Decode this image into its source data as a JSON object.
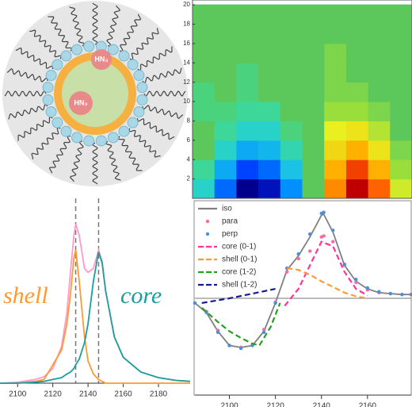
{
  "diagram": {
    "labels": [
      "HN₃",
      "HN₃"
    ]
  },
  "chart_data": [
    {
      "type": "contour",
      "categories": [
        null,
        null,
        null,
        null,
        null,
        null,
        null,
        null,
        null,
        null
      ],
      "y": [
        1,
        3,
        5,
        7,
        9,
        11,
        13,
        15,
        17,
        19
      ],
      "z": [
        [
          -0.2,
          -0.6,
          -1,
          -0.9,
          -0.5,
          0,
          0.6,
          1,
          0.7,
          0.2
        ],
        [
          -0.1,
          -0.4,
          -0.7,
          -0.6,
          -0.3,
          0,
          0.5,
          0.8,
          0.5,
          0.1
        ],
        [
          0,
          -0.2,
          -0.4,
          -0.35,
          -0.15,
          0,
          0.35,
          0.5,
          0.3,
          0.05
        ],
        [
          0,
          -0.1,
          -0.2,
          -0.2,
          -0.05,
          0,
          0.25,
          0.3,
          0.15,
          0
        ],
        [
          -0.05,
          -0.05,
          -0.1,
          -0.1,
          0,
          0,
          0.1,
          0.1,
          0.05,
          0
        ],
        [
          -0.05,
          0,
          -0.05,
          0,
          0,
          0,
          0.05,
          0.05,
          0,
          0
        ],
        [
          0,
          0,
          -0.05,
          0,
          0,
          0,
          0.05,
          0,
          0,
          0
        ],
        [
          0,
          0,
          0,
          0,
          0,
          0,
          0.05,
          0,
          0,
          0
        ],
        [
          0,
          0,
          0,
          0,
          0,
          0,
          0,
          0,
          0,
          0
        ],
        [
          0,
          0,
          0,
          0,
          0,
          0,
          0,
          0,
          0,
          0
        ]
      ],
      "colorscale": [
        [
          -1,
          "#00008c"
        ],
        [
          -0.75,
          "#0030ff"
        ],
        [
          -0.5,
          "#0090ff"
        ],
        [
          -0.25,
          "#20d0e0"
        ],
        [
          -0.08,
          "#40d890"
        ],
        [
          0,
          "#5cc85c"
        ],
        [
          0.08,
          "#90dc40"
        ],
        [
          0.25,
          "#e8f020"
        ],
        [
          0.5,
          "#ffb000"
        ],
        [
          0.75,
          "#ff5000"
        ],
        [
          1,
          "#c00000"
        ]
      ],
      "ylim": [
        0,
        20.5
      ],
      "yticks": [
        2,
        4,
        6,
        8,
        10,
        12,
        14,
        16,
        18,
        20
      ]
    },
    {
      "type": "line",
      "x": [
        2090,
        2100,
        2110,
        2115,
        2120,
        2125,
        2128,
        2130,
        2132,
        2133,
        2135,
        2138,
        2140,
        2143,
        2146,
        2148,
        2150,
        2155,
        2160,
        2170,
        2180,
        2190,
        2198
      ],
      "series": [
        {
          "color": "#ff99cc",
          "values": [
            0,
            0.005,
            0.02,
            0.035,
            0.08,
            0.2,
            0.38,
            0.6,
            0.8,
            0.86,
            0.8,
            0.62,
            0.6,
            0.62,
            0.72,
            0.66,
            0.5,
            0.25,
            0.14,
            0.06,
            0.03,
            0.015,
            0.01
          ]
        },
        {
          "color": "#ff9933",
          "values": [
            0,
            0,
            0.01,
            0.02,
            0.1,
            0.18,
            0.32,
            0.48,
            0.68,
            0.72,
            0.55,
            0.25,
            0.12,
            0.05,
            0.02,
            0.01,
            0,
            0,
            0,
            0,
            0,
            0,
            0
          ]
        },
        {
          "color": "#1a9e9e",
          "values": [
            0,
            0,
            0.005,
            0.01,
            0.02,
            0.03,
            0.05,
            0.06,
            0.08,
            0.1,
            0.13,
            0.22,
            0.32,
            0.55,
            0.71,
            0.65,
            0.5,
            0.25,
            0.14,
            0.06,
            0.03,
            0.015,
            0.01
          ]
        }
      ],
      "annotations": [
        {
          "text": "shell",
          "color": "#ff9933"
        },
        {
          "text": "core",
          "color": "#1a9e9e"
        }
      ],
      "vlines": [
        2133,
        2146
      ],
      "xlim": [
        2090,
        2198
      ],
      "ylim": [
        0,
        1
      ],
      "xticks": [
        2100,
        2120,
        2140,
        2160,
        2180
      ]
    },
    {
      "type": "line",
      "series": [
        {
          "name": "iso",
          "color": "#808080",
          "style": "line",
          "x": [
            2085,
            2090,
            2095,
            2100,
            2105,
            2110,
            2115,
            2120,
            2125,
            2130,
            2135,
            2140,
            2141,
            2145,
            2150,
            2155,
            2160,
            2165,
            2170,
            2175,
            2179
          ],
          "values": [
            -0.05,
            -0.15,
            -0.35,
            -0.5,
            -0.52,
            -0.5,
            -0.35,
            -0.05,
            0.3,
            0.45,
            0.65,
            0.88,
            0.89,
            0.7,
            0.35,
            0.18,
            0.1,
            0.06,
            0.05,
            0.04,
            0.04
          ]
        },
        {
          "name": "para",
          "color": "#ff66aa",
          "style": "dots",
          "x": [
            2085,
            2090,
            2095,
            2100,
            2105,
            2110,
            2115,
            2120,
            2125,
            2130,
            2135,
            2140,
            2141,
            2145,
            2150,
            2155,
            2160,
            2165,
            2170,
            2175,
            2179
          ],
          "values": [
            -0.05,
            -0.14,
            -0.34,
            -0.5,
            -0.52,
            -0.49,
            -0.33,
            -0.04,
            0.28,
            0.42,
            0.5,
            0.65,
            0.66,
            0.6,
            0.35,
            0.17,
            0.09,
            0.06,
            0.05,
            0.04,
            0.04
          ]
        },
        {
          "name": "perp",
          "color": "#4a90d9",
          "style": "dots",
          "x": [
            2085,
            2090,
            2095,
            2100,
            2105,
            2110,
            2115,
            2120,
            2125,
            2130,
            2135,
            2140,
            2141,
            2145,
            2150,
            2155,
            2160,
            2165,
            2170,
            2175,
            2179
          ],
          "values": [
            -0.05,
            -0.15,
            -0.36,
            -0.5,
            -0.53,
            -0.5,
            -0.36,
            -0.05,
            0.32,
            0.47,
            0.68,
            0.9,
            0.91,
            0.72,
            0.36,
            0.2,
            0.11,
            0.07,
            0.05,
            0.04,
            0.04
          ]
        },
        {
          "name": "core (0-1)",
          "color": "#ff3399",
          "style": "dash",
          "x": [
            2124,
            2130,
            2135,
            2140,
            2145,
            2150,
            2155,
            2160
          ],
          "values": [
            -0.08,
            0.1,
            0.35,
            0.6,
            0.55,
            0.28,
            0.1,
            0.03
          ]
        },
        {
          "name": "shell (0-1)",
          "color": "#ff9933",
          "style": "dash",
          "x": [
            2125,
            2130,
            2135,
            2140,
            2145,
            2150,
            2155,
            2160
          ],
          "values": [
            0.32,
            0.3,
            0.25,
            0.18,
            0.12,
            0.06,
            0.02,
            0
          ]
        },
        {
          "name": "core (1-2)",
          "color": "#22a022",
          "style": "dash",
          "x": [
            2088,
            2095,
            2100,
            2105,
            2110,
            2113,
            2118,
            2122
          ],
          "values": [
            -0.1,
            -0.25,
            -0.35,
            -0.42,
            -0.48,
            -0.5,
            -0.3,
            -0.05
          ]
        },
        {
          "name": "shell (1-2)",
          "color": "#1a1a99",
          "style": "dash",
          "x": [
            2088,
            2100,
            2110,
            2120
          ],
          "values": [
            -0.05,
            0,
            0.05,
            0.1
          ]
        }
      ],
      "hline": 0,
      "xlim": [
        2085,
        2179
      ],
      "ylim": [
        -1,
        1
      ],
      "xticks": [
        2100,
        2120,
        2140,
        2160
      ]
    }
  ]
}
